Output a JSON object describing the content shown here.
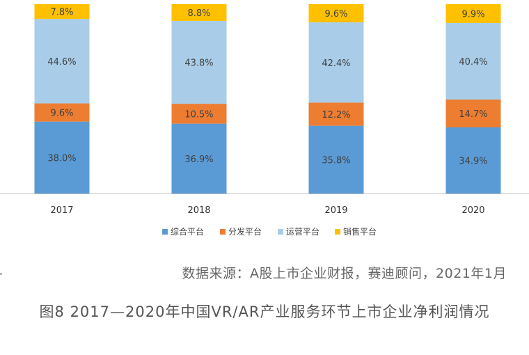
{
  "chart_data": {
    "type": "bar",
    "stacked": true,
    "percent_stacked": true,
    "categories": [
      "2017",
      "2018",
      "2019",
      "2020"
    ],
    "series": [
      {
        "name": "综合平台",
        "color": "#5b9bd5",
        "values": [
          38.0,
          36.9,
          35.8,
          34.9
        ],
        "labels": [
          "38.0%",
          "36.9%",
          "35.8%",
          "34.9%"
        ]
      },
      {
        "name": "分发平台",
        "color": "#ed7d31",
        "values": [
          9.6,
          10.5,
          12.2,
          14.7
        ],
        "labels": [
          "9.6%",
          "10.5%",
          "12.2%",
          "14.7%"
        ]
      },
      {
        "name": "运营平台",
        "color": "#a9cde8",
        "values": [
          44.6,
          43.8,
          42.4,
          40.4
        ],
        "labels": [
          "44.6%",
          "43.8%",
          "42.4%",
          "40.4%"
        ]
      },
      {
        "name": "销售平台",
        "color": "#ffc000",
        "values": [
          7.8,
          8.8,
          9.6,
          9.9
        ],
        "labels": [
          "7.8%",
          "8.8%",
          "9.6%",
          "9.9%"
        ]
      }
    ],
    "legend_position": "bottom",
    "grid": false
  },
  "source": "数据来源：A股上市企业财报，赛迪顾问，2021年1月",
  "caption": "图8 2017—2020年中国VR/AR产业服务环节上市企业净利润情况"
}
